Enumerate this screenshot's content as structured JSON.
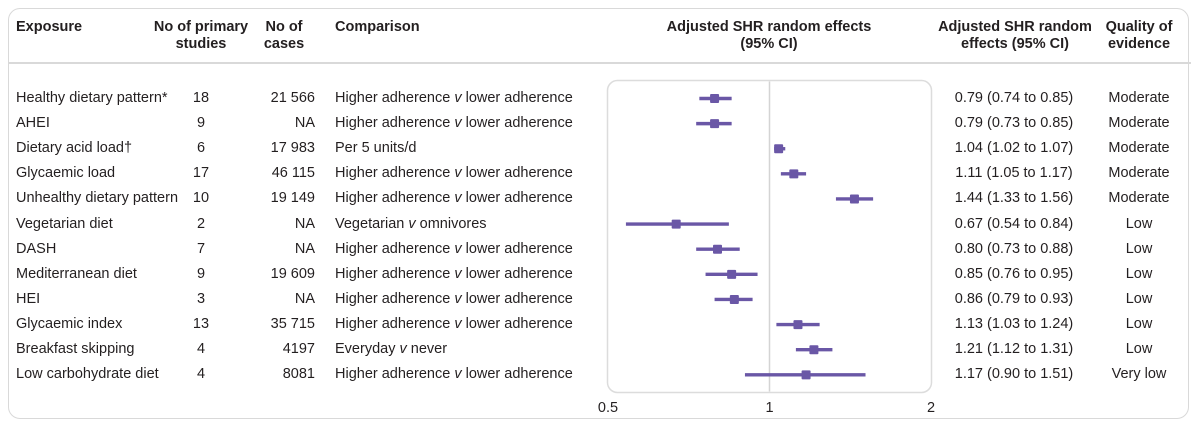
{
  "header": {
    "exposure": "Exposure",
    "studies": "No of primary studies",
    "cases": "No of cases",
    "comparison": "Comparison",
    "plot_title": "Adjusted SHR random effects (95% CI)",
    "shr": "Adjusted SHR random effects (95% CI)",
    "quality": "Quality of evidence"
  },
  "colors": {
    "accent_purple": "#6a57a6",
    "frame_gray": "#dcdcdc",
    "ref_line_gray": "#d4d4d4",
    "text": "#231f20"
  },
  "chart_data": {
    "type": "scatter",
    "variant": "forest-plot",
    "x_scale": "log",
    "x_range": [
      0.5,
      2
    ],
    "x_ticks": [
      "0.5",
      "1",
      "2"
    ],
    "reference_line": 1,
    "xlabel": "",
    "ylabel": "",
    "grid": false,
    "legend": false,
    "rows": [
      {
        "exposure": "Healthy dietary pattern*",
        "studies": "18",
        "cases": "21 566",
        "comparison": "Higher adherence v lower adherence",
        "estimate": 0.79,
        "ci_low": 0.74,
        "ci_high": 0.85,
        "shr_text": "0.79 (0.74 to 0.85)",
        "quality": "Moderate"
      },
      {
        "exposure": "AHEI",
        "studies": "9",
        "cases": "NA",
        "comparison": "Higher adherence v lower adherence",
        "estimate": 0.79,
        "ci_low": 0.73,
        "ci_high": 0.85,
        "shr_text": "0.79 (0.73 to 0.85)",
        "quality": "Moderate"
      },
      {
        "exposure": "Dietary acid load†",
        "studies": "6",
        "cases": "17 983",
        "comparison": "Per 5 units/d",
        "estimate": 1.04,
        "ci_low": 1.02,
        "ci_high": 1.07,
        "shr_text": "1.04 (1.02 to 1.07)",
        "quality": "Moderate"
      },
      {
        "exposure": "Glycaemic load",
        "studies": "17",
        "cases": "46 115",
        "comparison": "Higher adherence v lower adherence",
        "estimate": 1.11,
        "ci_low": 1.05,
        "ci_high": 1.17,
        "shr_text": "1.11 (1.05 to 1.17)",
        "quality": "Moderate"
      },
      {
        "exposure": "Unhealthy dietary pattern",
        "studies": "10",
        "cases": "19 149",
        "comparison": "Higher adherence v lower adherence",
        "estimate": 1.44,
        "ci_low": 1.33,
        "ci_high": 1.56,
        "shr_text": "1.44 (1.33 to 1.56)",
        "quality": "Moderate"
      },
      {
        "exposure": "Vegetarian diet",
        "studies": "2",
        "cases": "NA",
        "comparison": "Vegetarian v omnivores",
        "estimate": 0.67,
        "ci_low": 0.54,
        "ci_high": 0.84,
        "shr_text": "0.67 (0.54 to 0.84)",
        "quality": "Low"
      },
      {
        "exposure": "DASH",
        "studies": "7",
        "cases": "NA",
        "comparison": "Higher adherence v lower adherence",
        "estimate": 0.8,
        "ci_low": 0.73,
        "ci_high": 0.88,
        "shr_text": "0.80 (0.73 to 0.88)",
        "quality": "Low"
      },
      {
        "exposure": "Mediterranean diet",
        "studies": "9",
        "cases": "19 609",
        "comparison": "Higher adherence v lower adherence",
        "estimate": 0.85,
        "ci_low": 0.76,
        "ci_high": 0.95,
        "shr_text": "0.85 (0.76 to 0.95)",
        "quality": "Low"
      },
      {
        "exposure": "HEI",
        "studies": "3",
        "cases": "NA",
        "comparison": "Higher adherence v lower adherence",
        "estimate": 0.86,
        "ci_low": 0.79,
        "ci_high": 0.93,
        "shr_text": "0.86 (0.79 to 0.93)",
        "quality": "Low"
      },
      {
        "exposure": "Glycaemic index",
        "studies": "13",
        "cases": "35 715",
        "comparison": "Higher adherence v lower adherence",
        "estimate": 1.13,
        "ci_low": 1.03,
        "ci_high": 1.24,
        "shr_text": "1.13 (1.03 to 1.24)",
        "quality": "Low"
      },
      {
        "exposure": "Breakfast skipping",
        "studies": "4",
        "cases": "4197",
        "comparison": "Everyday v never",
        "estimate": 1.21,
        "ci_low": 1.12,
        "ci_high": 1.31,
        "shr_text": "1.21 (1.12 to 1.31)",
        "quality": "Low"
      },
      {
        "exposure": "Low carbohydrate diet",
        "studies": "4",
        "cases": "8081",
        "comparison": "Higher adherence v lower adherence",
        "estimate": 1.17,
        "ci_low": 0.9,
        "ci_high": 1.51,
        "shr_text": "1.17 (0.90 to 1.51)",
        "quality": "Very low"
      }
    ]
  }
}
